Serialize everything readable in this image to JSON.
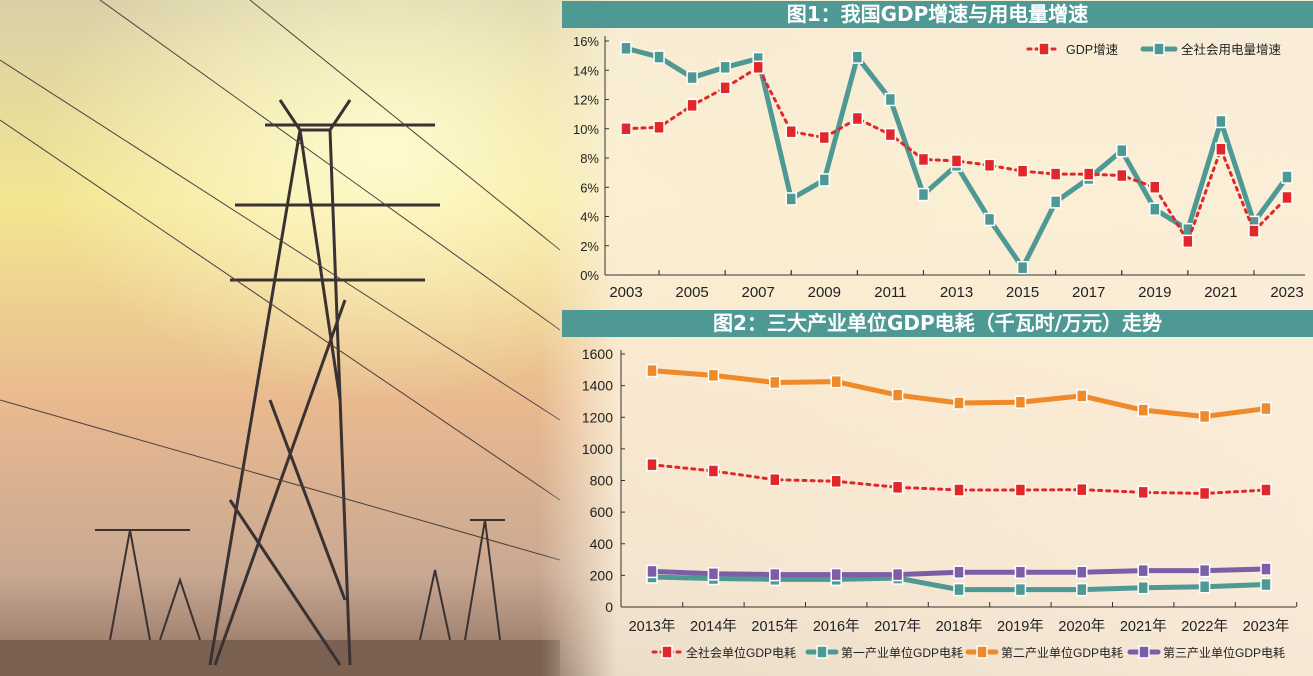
{
  "colors": {
    "title_bar": "#4f9995",
    "gdp": "#e0282a",
    "electricity": "#4f9995",
    "total": "#e0282a",
    "primary": "#4f9995",
    "secondary": "#ef8a2a",
    "tertiary": "#7b5ea7"
  },
  "chart_data": [
    {
      "type": "line",
      "title": "图1：我国GDP增速与用电量增速",
      "x": [
        2003,
        2004,
        2005,
        2006,
        2007,
        2008,
        2009,
        2010,
        2011,
        2012,
        2013,
        2014,
        2015,
        2016,
        2017,
        2018,
        2019,
        2020,
        2021,
        2022,
        2023
      ],
      "xtick_labels": [
        "2003",
        "2005",
        "2007",
        "2009",
        "2011",
        "2013",
        "2015",
        "2017",
        "2019",
        "2021",
        "2023"
      ],
      "ytick_labels": [
        "0%",
        "2%",
        "4%",
        "6%",
        "8%",
        "10%",
        "12%",
        "14%",
        "16%"
      ],
      "ylim": [
        0,
        16
      ],
      "legend_position": "top-right",
      "series": [
        {
          "name": "GDP增速",
          "style": "dotted",
          "values": [
            10.0,
            10.1,
            11.6,
            12.8,
            14.2,
            9.8,
            9.4,
            10.7,
            9.6,
            7.9,
            7.8,
            7.5,
            7.1,
            6.9,
            6.9,
            6.8,
            6.0,
            2.3,
            8.6,
            3.0,
            5.3
          ]
        },
        {
          "name": "全社会用电量增速",
          "style": "solid",
          "values": [
            15.5,
            14.9,
            13.5,
            14.2,
            14.8,
            5.2,
            6.5,
            14.9,
            12.0,
            5.5,
            7.5,
            3.8,
            0.5,
            5.0,
            6.6,
            8.5,
            4.5,
            3.1,
            10.5,
            3.6,
            6.7
          ]
        }
      ]
    },
    {
      "type": "line",
      "title": "图2：三大产业单位GDP电耗（千瓦时/万元）走势",
      "categories": [
        "2013年",
        "2014年",
        "2015年",
        "2016年",
        "2017年",
        "2018年",
        "2019年",
        "2020年",
        "2021年",
        "2022年",
        "2023年"
      ],
      "ytick_labels": [
        "0",
        "200",
        "400",
        "600",
        "800",
        "1000",
        "1200",
        "1400",
        "1600"
      ],
      "ylim": [
        0,
        1600
      ],
      "legend_position": "bottom",
      "series": [
        {
          "name": "全社会单位GDP电耗",
          "style": "dotted",
          "values": [
            900,
            860,
            805,
            795,
            757,
            740,
            740,
            742,
            725,
            718,
            740
          ]
        },
        {
          "name": "第一产业单位GDP电耗",
          "style": "solid",
          "values": [
            190,
            180,
            175,
            175,
            183,
            110,
            110,
            110,
            122,
            128,
            142
          ]
        },
        {
          "name": "第二产业单位GDP电耗",
          "style": "solid",
          "values": [
            1495,
            1465,
            1420,
            1425,
            1340,
            1290,
            1295,
            1335,
            1245,
            1205,
            1255
          ]
        },
        {
          "name": "第三产业单位GDP电耗",
          "style": "solid",
          "values": [
            225,
            210,
            205,
            205,
            205,
            220,
            220,
            220,
            230,
            230,
            240
          ]
        }
      ]
    }
  ]
}
